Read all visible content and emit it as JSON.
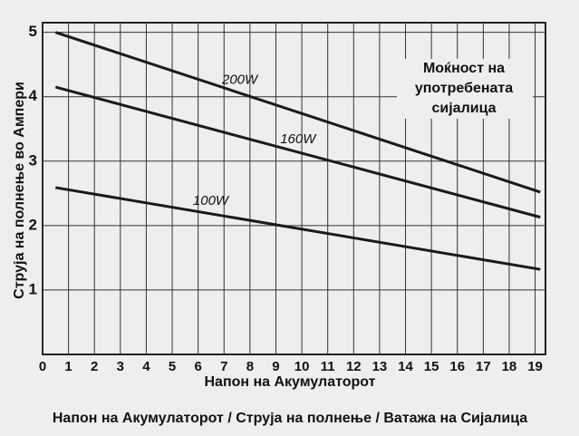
{
  "chart_data": {
    "type": "line",
    "title": "Напон на Акумулаторот / Струја на полнење / Ватажа на Сијалица",
    "xlabel": "Напон на Акумулаторот",
    "ylabel": "Струја на полнење во Ампери",
    "annotation": [
      "Моќност на",
      "употребената",
      "сијалица"
    ],
    "series": [
      {
        "name": "200W",
        "color": "#1a1a1a",
        "x": [
          0.5,
          19.2
        ],
        "values": [
          5.0,
          2.52
        ]
      },
      {
        "name": "160W",
        "color": "#1a1a1a",
        "x": [
          0.5,
          19.2
        ],
        "values": [
          4.15,
          2.13
        ]
      },
      {
        "name": "100W",
        "color": "#1a1a1a",
        "x": [
          0.5,
          19.2
        ],
        "values": [
          2.59,
          1.32
        ]
      }
    ],
    "xlim": [
      0,
      19.4
    ],
    "ylim": [
      0,
      5.15
    ],
    "xticks": [
      0,
      1,
      2,
      3,
      4,
      5,
      6,
      7,
      8,
      9,
      10,
      11,
      12,
      13,
      14,
      15,
      16,
      17,
      18,
      19
    ],
    "yticks": [
      1,
      2,
      3,
      4,
      5
    ],
    "grid": true
  }
}
